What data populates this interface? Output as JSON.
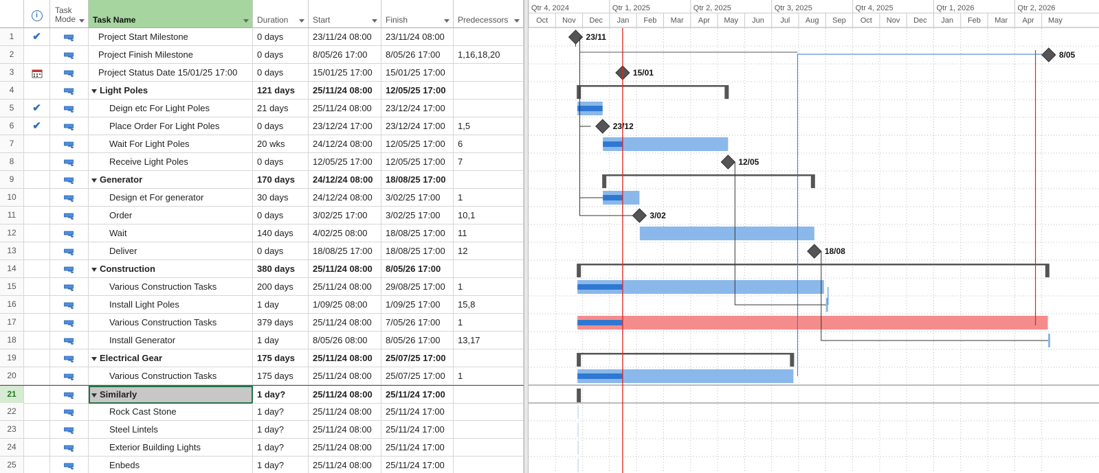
{
  "columns": {
    "id": "",
    "mode": "Task Mode",
    "name": "Task Name",
    "duration": "Duration",
    "start": "Start",
    "finish": "Finish",
    "predecessors": "Predecessors"
  },
  "timescale": {
    "quarters": [
      "Qtr 4, 2024",
      "Qtr 1, 2025",
      "Qtr 2, 2025",
      "Qtr 3, 2025",
      "Qtr 4, 2025",
      "Qtr 1, 2026",
      "Qtr 2, 2026"
    ],
    "months": [
      "Oct",
      "Nov",
      "Dec",
      "Jan",
      "Feb",
      "Mar",
      "Apr",
      "May",
      "Jun",
      "Jul",
      "Aug",
      "Sep",
      "Oct",
      "Nov",
      "Dec",
      "Jan",
      "Feb",
      "Mar",
      "Apr",
      "May"
    ]
  },
  "tasks": [
    {
      "id": "1",
      "indicator": "check",
      "name": "Project Start Milestone",
      "duration": "0 days",
      "start": "23/11/24 08:00",
      "finish": "23/11/24 08:00",
      "pred": "",
      "level": 0,
      "summary": false
    },
    {
      "id": "2",
      "indicator": "",
      "name": "Project Finish Milestone",
      "duration": "0 days",
      "start": "8/05/26 17:00",
      "finish": "8/05/26 17:00",
      "pred": "1,16,18,20",
      "level": 0,
      "summary": false
    },
    {
      "id": "3",
      "indicator": "calendar",
      "name": "Project Status Date 15/01/25 17:00",
      "duration": "0 days",
      "start": "15/01/25 17:00",
      "finish": "15/01/25 17:00",
      "pred": "",
      "level": 0,
      "summary": false
    },
    {
      "id": "4",
      "indicator": "",
      "name": "Light Poles",
      "duration": "121 days",
      "start": "25/11/24 08:00",
      "finish": "12/05/25 17:00",
      "pred": "",
      "level": 0,
      "summary": true
    },
    {
      "id": "5",
      "indicator": "check",
      "name": "Deign etc For Light Poles",
      "duration": "21 days",
      "start": "25/11/24 08:00",
      "finish": "23/12/24 17:00",
      "pred": "",
      "level": 1,
      "summary": false
    },
    {
      "id": "6",
      "indicator": "check",
      "name": "Place Order For Light Poles",
      "duration": "0 days",
      "start": "23/12/24 17:00",
      "finish": "23/12/24 17:00",
      "pred": "1,5",
      "level": 1,
      "summary": false
    },
    {
      "id": "7",
      "indicator": "",
      "name": "Wait For Light Poles",
      "duration": "20 wks",
      "start": "24/12/24 08:00",
      "finish": "12/05/25 17:00",
      "pred": "6",
      "level": 1,
      "summary": false
    },
    {
      "id": "8",
      "indicator": "",
      "name": "Receive Light Poles",
      "duration": "0 days",
      "start": "12/05/25 17:00",
      "finish": "12/05/25 17:00",
      "pred": "7",
      "level": 1,
      "summary": false
    },
    {
      "id": "9",
      "indicator": "",
      "name": "Generator",
      "duration": "170 days",
      "start": "24/12/24 08:00",
      "finish": "18/08/25 17:00",
      "pred": "",
      "level": 0,
      "summary": true
    },
    {
      "id": "10",
      "indicator": "",
      "name": "Design et For generator",
      "duration": "30 days",
      "start": "24/12/24 08:00",
      "finish": "3/02/25 17:00",
      "pred": "1",
      "level": 1,
      "summary": false
    },
    {
      "id": "11",
      "indicator": "",
      "name": "Order",
      "duration": "0 days",
      "start": "3/02/25 17:00",
      "finish": "3/02/25 17:00",
      "pred": "10,1",
      "level": 1,
      "summary": false
    },
    {
      "id": "12",
      "indicator": "",
      "name": "Wait",
      "duration": "140 days",
      "start": "4/02/25 08:00",
      "finish": "18/08/25 17:00",
      "pred": "11",
      "level": 1,
      "summary": false
    },
    {
      "id": "13",
      "indicator": "",
      "name": "Deliver",
      "duration": "0 days",
      "start": "18/08/25 17:00",
      "finish": "18/08/25 17:00",
      "pred": "12",
      "level": 1,
      "summary": false
    },
    {
      "id": "14",
      "indicator": "",
      "name": "Construction",
      "duration": "380 days",
      "start": "25/11/24 08:00",
      "finish": "8/05/26 17:00",
      "pred": "",
      "level": 0,
      "summary": true
    },
    {
      "id": "15",
      "indicator": "",
      "name": "Various Construction Tasks",
      "duration": "200 days",
      "start": "25/11/24 08:00",
      "finish": "29/08/25 17:00",
      "pred": "1",
      "level": 1,
      "summary": false
    },
    {
      "id": "16",
      "indicator": "",
      "name": "Install Light Poles",
      "duration": "1 day",
      "start": "1/09/25 08:00",
      "finish": "1/09/25 17:00",
      "pred": "15,8",
      "level": 1,
      "summary": false
    },
    {
      "id": "17",
      "indicator": "",
      "name": "Various Construction Tasks",
      "duration": "379 days",
      "start": "25/11/24 08:00",
      "finish": "7/05/26 17:00",
      "pred": "1",
      "level": 1,
      "summary": false
    },
    {
      "id": "18",
      "indicator": "",
      "name": "Install Generator",
      "duration": "1 day",
      "start": "8/05/26 08:00",
      "finish": "8/05/26 17:00",
      "pred": "13,17",
      "level": 1,
      "summary": false
    },
    {
      "id": "19",
      "indicator": "",
      "name": "Electrical Gear",
      "duration": "175 days",
      "start": "25/11/24 08:00",
      "finish": "25/07/25 17:00",
      "pred": "",
      "level": 0,
      "summary": true
    },
    {
      "id": "20",
      "indicator": "",
      "name": "Various Construction Tasks",
      "duration": "175 days",
      "start": "25/11/24 08:00",
      "finish": "25/07/25 17:00",
      "pred": "1",
      "level": 1,
      "summary": false
    },
    {
      "id": "21",
      "indicator": "",
      "name": "Similarly",
      "duration": "1 day?",
      "start": "25/11/24 08:00",
      "finish": "25/11/24 17:00",
      "pred": "",
      "level": 0,
      "summary": true,
      "active": true
    },
    {
      "id": "22",
      "indicator": "",
      "name": "Rock Cast Stone",
      "duration": "1 day?",
      "start": "25/11/24 08:00",
      "finish": "25/11/24 17:00",
      "pred": "",
      "level": 1,
      "summary": false
    },
    {
      "id": "23",
      "indicator": "",
      "name": "Steel Lintels",
      "duration": "1 day?",
      "start": "25/11/24 08:00",
      "finish": "25/11/24 17:00",
      "pred": "",
      "level": 1,
      "summary": false
    },
    {
      "id": "24",
      "indicator": "",
      "name": "Exterior Building Lights",
      "duration": "1 day?",
      "start": "25/11/24 08:00",
      "finish": "25/11/24 17:00",
      "pred": "",
      "level": 1,
      "summary": false
    },
    {
      "id": "25",
      "indicator": "",
      "name": "Enbeds",
      "duration": "1 day?",
      "start": "25/11/24 08:00",
      "finish": "25/11/24 17:00",
      "pred": "",
      "level": 1,
      "summary": false
    }
  ],
  "milestone_labels": {
    "t1": "23/11",
    "t2": "8/05",
    "t3": "15/01",
    "t6": "23/12",
    "t8": "12/05",
    "t11": "3/02",
    "t13": "18/08"
  },
  "colors": {
    "header_selected": "#a6d5a0",
    "task_bar": "#8ab8ea",
    "progress": "#2f78d2",
    "critical_bar": "#f58c8c",
    "status_line": "#e02020",
    "summary": "#555555",
    "milestone": "#555555"
  }
}
